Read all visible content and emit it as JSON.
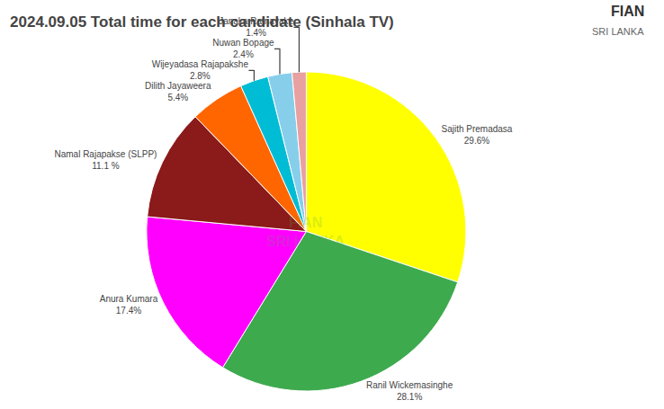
{
  "chart_data": {
    "type": "pie",
    "title": "2024.09.05 Total time for each candidate (Sinhala TV)",
    "categories": [
      "Sajith Premadasa",
      "Ranil Wickemasinghe",
      "Anura Kumara",
      "Namal Rajapakse (SLPP)",
      "Dilith Jayaweera",
      "Wijeyadasa Rajapakshe",
      "Nuwan Bopage",
      "Janaka Ratnayake"
    ],
    "values": [
      29.6,
      28.1,
      17.4,
      11.1,
      5.4,
      2.8,
      2.4,
      1.4
    ],
    "value_labels": [
      "29.6%",
      "28.1%",
      "17.4%",
      "11.1 %",
      "5.4%",
      "2.8%",
      "2.4%",
      "1.4%"
    ],
    "colors": [
      "#FFFF00",
      "#3DAA4E",
      "#FF00FF",
      "#8B1A1A",
      "#FF6600",
      "#00BCD4",
      "#87CEEB",
      "#E8A0A0"
    ],
    "data_labels": true,
    "annotations": [
      {
        "text": "FIAN\nSRI LANKA",
        "color": "#4CAF50"
      },
      {
        "text": "FIAN"
      },
      {
        "text": "SRI LANKA"
      }
    ]
  }
}
